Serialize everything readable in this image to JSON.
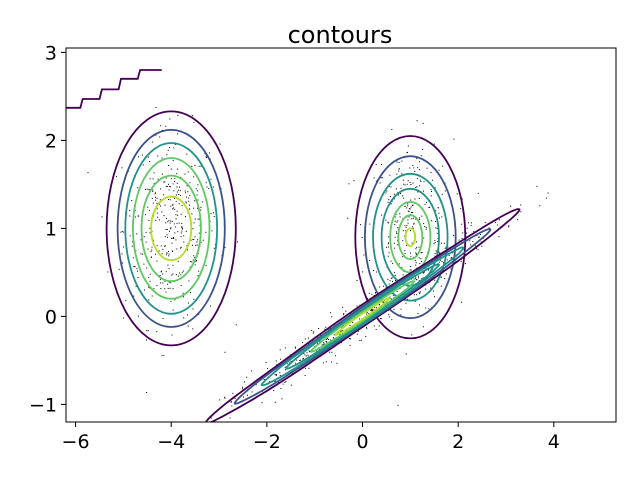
{
  "chart_data": {
    "type": "contour",
    "title": "contours",
    "xlabel": "",
    "ylabel": "",
    "xlim": [
      -6.2,
      5.3
    ],
    "ylim": [
      -1.2,
      3.05
    ],
    "xticks": [
      -6,
      -4,
      -2,
      0,
      2,
      4
    ],
    "xtick_labels": [
      "−6",
      "−4",
      "−2",
      "0",
      "2",
      "4"
    ],
    "yticks": [
      -1,
      0,
      1,
      2,
      3
    ],
    "ytick_labels": [
      "−1",
      "0",
      "1",
      "2",
      "3"
    ],
    "grid": false,
    "colormap": [
      "#440154",
      "#3b528b",
      "#21918c",
      "#5ec962",
      "#b5de2b"
    ],
    "clusters": [
      {
        "name": "left",
        "center": [
          -4.0,
          1.0
        ],
        "rx": [
          1.35,
          1.12,
          0.96,
          0.8,
          0.62,
          0.42
        ],
        "ry": [
          1.33,
          1.12,
          0.97,
          0.8,
          0.6,
          0.36
        ],
        "levels": [
          0,
          1,
          2,
          3,
          3,
          4
        ]
      },
      {
        "name": "middle",
        "center": [
          1.0,
          0.9
        ],
        "rx": [
          1.15,
          0.95,
          0.78,
          0.6,
          0.42,
          0.25,
          0.1
        ],
        "ry": [
          1.15,
          0.92,
          0.72,
          0.55,
          0.4,
          0.25,
          0.1
        ],
        "levels": [
          0,
          1,
          2,
          2,
          3,
          3,
          4
        ]
      },
      {
        "name": "diagonal",
        "center": [
          0.0,
          0.0
        ],
        "angle_deg": 20.3,
        "major": [
          3.5,
          2.85,
          2.25,
          1.7,
          1.15,
          0.6
        ],
        "minor": [
          0.12,
          0.1,
          0.085,
          0.068,
          0.05,
          0.03
        ],
        "levels": [
          0,
          1,
          2,
          2,
          3,
          4
        ]
      }
    ],
    "staircase": {
      "color": "#440154",
      "points": [
        [
          -6.2,
          2.37
        ],
        [
          -5.9,
          2.37
        ],
        [
          -5.85,
          2.47
        ],
        [
          -5.5,
          2.47
        ],
        [
          -5.45,
          2.58
        ],
        [
          -5.1,
          2.58
        ],
        [
          -5.05,
          2.7
        ],
        [
          -4.7,
          2.7
        ],
        [
          -4.65,
          2.8
        ],
        [
          -4.2,
          2.8
        ]
      ]
    },
    "scatter": {
      "color": "#000000",
      "regions": [
        {
          "center": [
            -4.0,
            1.0
          ],
          "sx": 0.5,
          "sy": 0.55,
          "count": 420
        },
        {
          "center": [
            1.0,
            1.0
          ],
          "sx": 0.45,
          "sy": 0.5,
          "count": 330
        },
        {
          "center": [
            0.0,
            0.0
          ],
          "along": 1.5,
          "across": 0.1,
          "angle_deg": 20.3,
          "count": 560
        }
      ]
    }
  }
}
